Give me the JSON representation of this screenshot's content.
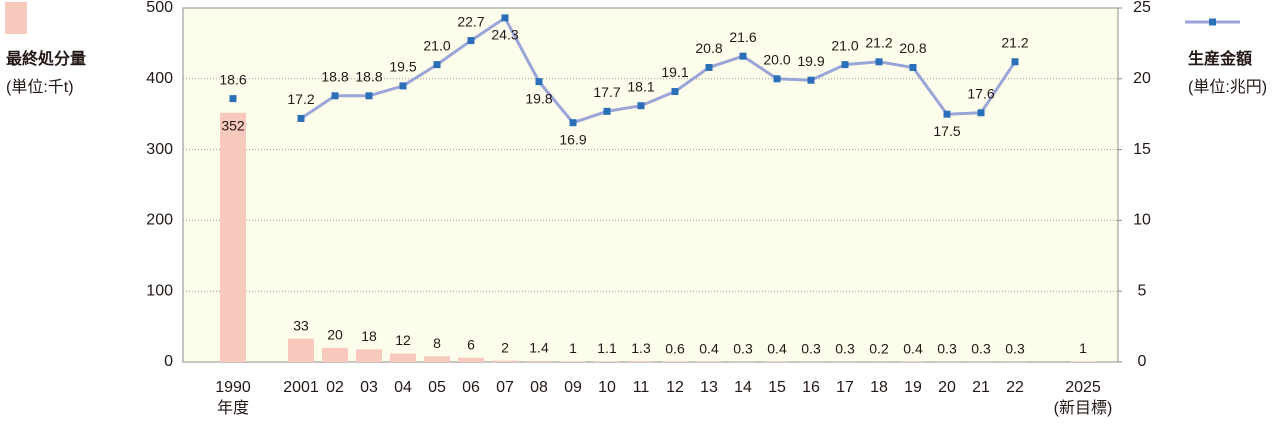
{
  "chart_data": {
    "type": "bar_line",
    "categories": [
      "1990",
      null,
      "2001",
      "02",
      "03",
      "04",
      "05",
      "06",
      "07",
      "08",
      "09",
      "10",
      "11",
      "12",
      "13",
      "14",
      "15",
      "16",
      "17",
      "18",
      "19",
      "20",
      "21",
      "22",
      null,
      "2025"
    ],
    "x_sublabels": [
      "年度",
      null,
      null,
      null,
      null,
      null,
      null,
      null,
      null,
      null,
      null,
      null,
      null,
      null,
      null,
      null,
      null,
      null,
      null,
      null,
      null,
      null,
      null,
      null,
      null,
      "(新目標)"
    ],
    "series": [
      {
        "name": "最終処分量",
        "unit": "(単位:千t)",
        "type": "bar",
        "color": "#f9c9bd",
        "values": [
          352,
          null,
          33,
          20,
          18,
          12,
          8,
          6,
          2,
          1.4,
          1,
          1.1,
          1.3,
          0.6,
          0.4,
          0.3,
          0.4,
          0.3,
          0.3,
          0.2,
          0.4,
          0.3,
          0.3,
          0.3,
          null,
          1
        ]
      },
      {
        "name": "生産金額",
        "unit": "(単位:兆円)",
        "type": "line",
        "axis": "y2",
        "color": "#9aa5d8",
        "marker_color": "#2a6fb8",
        "values": [
          18.6,
          null,
          17.2,
          18.8,
          18.8,
          19.5,
          21.0,
          22.7,
          24.3,
          19.8,
          16.9,
          17.7,
          18.1,
          19.1,
          20.8,
          21.6,
          20.0,
          19.9,
          21.0,
          21.2,
          20.8,
          17.5,
          17.6,
          21.2,
          null,
          null
        ],
        "value_labels": [
          "18.6",
          null,
          "17.2",
          "18.8",
          "18.8",
          "19.5",
          "21.0",
          "22.7",
          "24.3",
          "19.8",
          "16.9",
          "17.7",
          "18.1",
          "19.1",
          "20.8",
          "21.6",
          "20.0",
          "19.9",
          "21.0",
          "21.2",
          "20.8",
          "17.5",
          "17.6",
          "21.2",
          null,
          null
        ]
      }
    ],
    "ylim": [
      0,
      500
    ],
    "yticks": [
      0,
      100,
      200,
      300,
      400,
      500
    ],
    "y2lim": [
      0,
      25
    ],
    "y2ticks": [
      0,
      5,
      10,
      15,
      20,
      25
    ],
    "grid": true
  }
}
